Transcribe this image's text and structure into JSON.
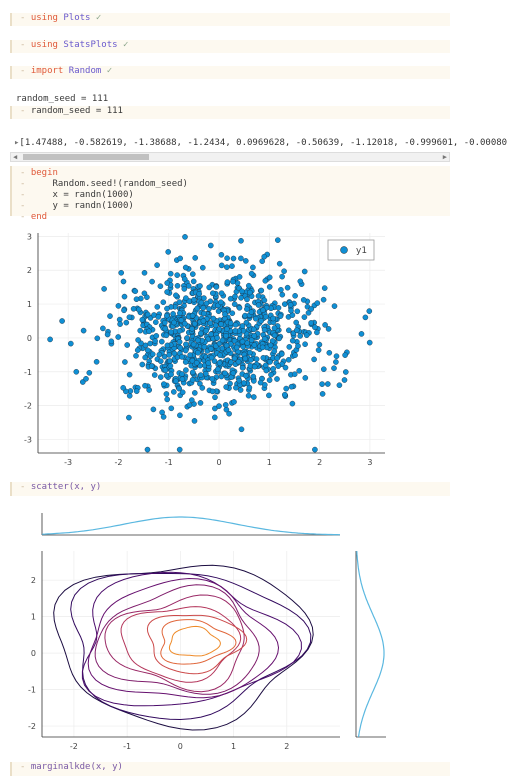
{
  "cells": {
    "using_plots": {
      "dash": "-",
      "kw": "using",
      "mod": "Plots",
      "tick": "✓"
    },
    "using_stats": {
      "dash": "-",
      "kw": "using",
      "mod": "StatsPlots",
      "tick": "✓"
    },
    "import_random": {
      "dash": "-",
      "kw": "import",
      "mod": "Random",
      "tick": "✓"
    },
    "seed_output": "random_seed = 111",
    "seed_code": {
      "dash": "-",
      "code": "random_seed = 111"
    },
    "array_output": "[1.47488, -0.582619, -1.38688, -1.2434, 0.0969628, -0.50639, -1.12018, -0.999601, -0.00080",
    "array_expander": "▸",
    "begin_block": {
      "dash": "-",
      "line1": "begin",
      "line2": "    Random.seed!(random_seed)",
      "line3": "    x = randn(1000)",
      "line4": "    y = randn(1000)",
      "line5": "end"
    },
    "scatter_code": {
      "dash": "-",
      "code": "scatter(x, y)"
    },
    "marginal_code": {
      "dash": "-",
      "code": "marginalkde(x, y)"
    }
  },
  "scrollbar": {
    "left_arrow": "◀",
    "right_arrow": "▶"
  },
  "colors": {
    "marker": "#0f8fd4",
    "kde_line": "#5bb8e0",
    "cell_bg": "#fdf9f0"
  },
  "chart_data": [
    {
      "type": "scatter",
      "title": "",
      "xlabel": "",
      "ylabel": "",
      "xlim": [
        -3.6,
        3.3
      ],
      "ylim": [
        -3.4,
        3.1
      ],
      "xticks": [
        -3,
        -2,
        -1,
        0,
        1,
        2,
        3
      ],
      "yticks": [
        -3,
        -2,
        -1,
        0,
        1,
        2,
        3
      ],
      "grid": true,
      "legend": "top-right",
      "series": [
        {
          "name": "y1",
          "n": 1000,
          "distribution": "standard normal, seed 111"
        }
      ]
    },
    {
      "type": "kde-contour",
      "title": "",
      "xticks": [
        -2,
        -1,
        0,
        1,
        2
      ],
      "yticks": [
        -2,
        -1,
        0,
        1,
        2
      ],
      "xlim": [
        -2.6,
        3.0
      ],
      "ylim": [
        -2.3,
        2.8
      ],
      "levels": 10,
      "marginals": [
        "top density of x",
        "right density of y"
      ],
      "colormap": "inferno"
    }
  ]
}
